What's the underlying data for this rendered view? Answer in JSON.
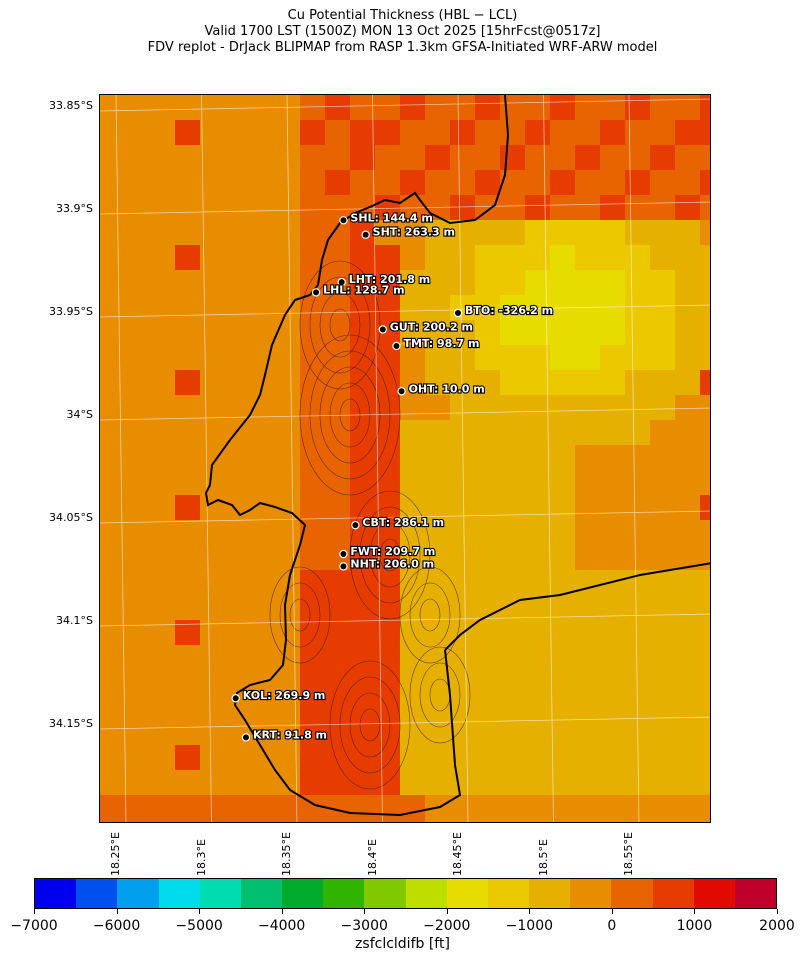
{
  "header": {
    "line1": "Cu Potential Thickness (HBL − LCL)",
    "line2": "Valid 1700 LST (1500Z) MON 13 Oct 2025 [15hrFcst@0517z]",
    "line3": "FDV replot - DrJack BLIPMAP from RASP 1.3km GFSA-Initiated WRF-ARW model"
  },
  "map": {
    "lat_labels": [
      "33.85°S",
      "33.9°S",
      "33.95°S",
      "34°S",
      "34.05°S",
      "34.1°S",
      "34.15°S"
    ],
    "lon_labels": [
      "18.25°E",
      "18.3°E",
      "18.35°E",
      "18.4°E",
      "18.45°E",
      "18.5°E",
      "18.55°E"
    ],
    "stations": [
      {
        "label": "SHL: 144.4 m",
        "lat": -33.905,
        "lon": 18.383
      },
      {
        "label": "SHT: 263.3 m",
        "lat": -33.912,
        "lon": 18.396
      },
      {
        "label": "LHT: 201.8 m",
        "lat": -33.935,
        "lon": 18.382
      },
      {
        "label": "LHL: 128.7 m",
        "lat": -33.94,
        "lon": 18.367
      },
      {
        "label": "BTO: -326.2 m",
        "lat": -33.95,
        "lon": 18.45
      },
      {
        "label": "GUT: 200.2 m",
        "lat": -33.958,
        "lon": 18.406
      },
      {
        "label": "TMT: 98.7 m",
        "lat": -33.966,
        "lon": 18.414
      },
      {
        "label": "OHT: 10.0 m",
        "lat": -33.988,
        "lon": 18.417
      },
      {
        "label": "CBT: 286.1 m",
        "lat": -34.053,
        "lon": 18.39
      },
      {
        "label": "FWT: 209.7 m",
        "lat": -34.067,
        "lon": 18.383
      },
      {
        "label": "NHT: 206.0 m",
        "lat": -34.073,
        "lon": 18.383
      },
      {
        "label": "KOL: 269.9 m",
        "lat": -34.137,
        "lon": 18.32
      },
      {
        "label": "KRT: 91.8 m",
        "lat": -34.156,
        "lon": 18.326
      }
    ]
  },
  "colorbar": {
    "label": "zsfclcldifb [ft]",
    "ticks": [
      "−7000",
      "−6000",
      "−5000",
      "−4000",
      "−3000",
      "−2000",
      "−1000",
      "0",
      "1000",
      "2000"
    ],
    "colors": [
      "#0000ee",
      "#0050f0",
      "#00a0ee",
      "#00dcec",
      "#00dcb0",
      "#00c070",
      "#00aa2a",
      "#30b400",
      "#80c800",
      "#bede00",
      "#e6dc00",
      "#ecc800",
      "#e6b000",
      "#e88c00",
      "#e86400",
      "#e63c00",
      "#e00a00",
      "#c0002a"
    ]
  }
}
